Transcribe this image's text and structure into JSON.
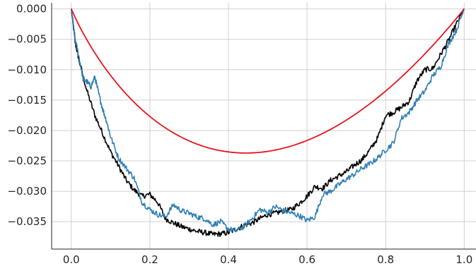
{
  "chart_data": {
    "type": "line",
    "title": "",
    "xlabel": "",
    "ylabel": "",
    "xlim": [
      -0.05,
      1.03
    ],
    "ylim": [
      -0.0395,
      0.001
    ],
    "grid": true,
    "legend": "none",
    "x_ticks": [
      0.0,
      0.2,
      0.4,
      0.6,
      0.8,
      1.0
    ],
    "x_tick_labels": [
      "0.0",
      "0.2",
      "0.4",
      "0.6",
      "0.8",
      "1.0"
    ],
    "y_ticks": [
      0.0,
      -0.005,
      -0.01,
      -0.015,
      -0.02,
      -0.025,
      -0.03,
      -0.035
    ],
    "y_tick_labels": [
      "0.000",
      "−0.005",
      "−0.010",
      "−0.015",
      "−0.020",
      "−0.025",
      "−0.030",
      "−0.035"
    ],
    "series": [
      {
        "color": "#000000",
        "x": [
          0.0,
          0.01,
          0.02,
          0.04,
          0.06,
          0.08,
          0.1,
          0.12,
          0.14,
          0.16,
          0.18,
          0.2,
          0.22,
          0.24,
          0.26,
          0.28,
          0.3,
          0.32,
          0.34,
          0.36,
          0.38,
          0.4,
          0.42,
          0.44,
          0.46,
          0.48,
          0.5,
          0.52,
          0.54,
          0.56,
          0.58,
          0.6,
          0.62,
          0.64,
          0.66,
          0.68,
          0.7,
          0.72,
          0.74,
          0.76,
          0.78,
          0.8,
          0.82,
          0.84,
          0.86,
          0.88,
          0.9,
          0.92,
          0.94,
          0.96,
          0.98,
          1.0
        ],
        "y": [
          0.0,
          -0.0055,
          -0.0085,
          -0.0135,
          -0.0175,
          -0.0205,
          -0.0235,
          -0.0258,
          -0.0282,
          -0.0298,
          -0.0308,
          -0.0305,
          -0.0318,
          -0.0345,
          -0.0352,
          -0.0358,
          -0.0362,
          -0.0366,
          -0.0368,
          -0.0371,
          -0.037,
          -0.0368,
          -0.0362,
          -0.0356,
          -0.0352,
          -0.0345,
          -0.0338,
          -0.0336,
          -0.0332,
          -0.033,
          -0.032,
          -0.0308,
          -0.0292,
          -0.0295,
          -0.0282,
          -0.0275,
          -0.0268,
          -0.0257,
          -0.0248,
          -0.0232,
          -0.0212,
          -0.0175,
          -0.017,
          -0.0162,
          -0.0152,
          -0.0118,
          -0.01,
          -0.0098,
          -0.0075,
          -0.0052,
          -0.0025,
          0.0
        ]
      },
      {
        "color": "#2f7fb5",
        "x": [
          0.0,
          0.01,
          0.02,
          0.03,
          0.04,
          0.05,
          0.06,
          0.07,
          0.08,
          0.09,
          0.1,
          0.12,
          0.14,
          0.16,
          0.18,
          0.2,
          0.22,
          0.24,
          0.26,
          0.28,
          0.3,
          0.32,
          0.34,
          0.36,
          0.38,
          0.4,
          0.42,
          0.44,
          0.46,
          0.48,
          0.5,
          0.52,
          0.54,
          0.56,
          0.58,
          0.6,
          0.62,
          0.64,
          0.66,
          0.68,
          0.7,
          0.72,
          0.74,
          0.76,
          0.78,
          0.8,
          0.82,
          0.84,
          0.86,
          0.88,
          0.9,
          0.92,
          0.94,
          0.96,
          0.98,
          1.0
        ],
        "y": [
          0.0,
          -0.005,
          -0.008,
          -0.0115,
          -0.012,
          -0.0128,
          -0.0112,
          -0.014,
          -0.0165,
          -0.0185,
          -0.021,
          -0.0245,
          -0.0262,
          -0.0278,
          -0.0318,
          -0.033,
          -0.0338,
          -0.0342,
          -0.0322,
          -0.0332,
          -0.0336,
          -0.0342,
          -0.0345,
          -0.0355,
          -0.035,
          -0.0362,
          -0.0365,
          -0.0358,
          -0.0345,
          -0.033,
          -0.0335,
          -0.0325,
          -0.0332,
          -0.0336,
          -0.034,
          -0.0348,
          -0.0342,
          -0.0305,
          -0.03,
          -0.029,
          -0.028,
          -0.0272,
          -0.0262,
          -0.0255,
          -0.0245,
          -0.0232,
          -0.022,
          -0.018,
          -0.017,
          -0.015,
          -0.0135,
          -0.011,
          -0.0095,
          -0.0058,
          -0.0035,
          0.0
        ]
      },
      {
        "color": "#e8141a",
        "function": "-0.160*x*(1-sqrt(x))",
        "samples": 200
      }
    ]
  }
}
